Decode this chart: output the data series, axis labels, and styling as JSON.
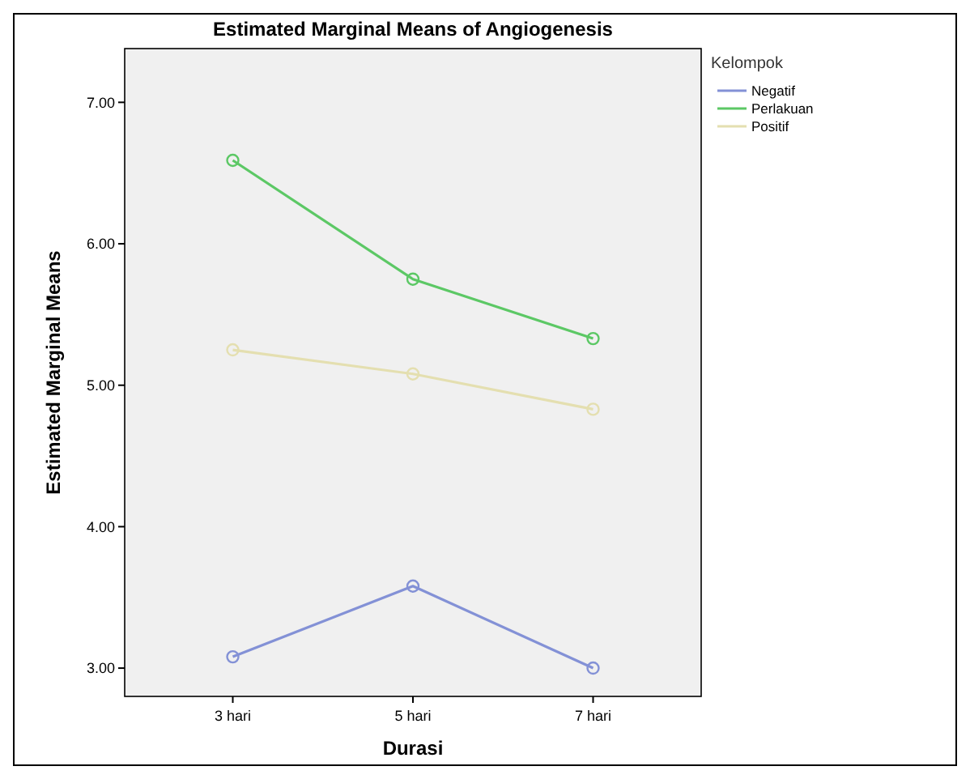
{
  "chart_data": {
    "type": "line",
    "title": "Estimated Marginal Means of Angiogenesis",
    "xlabel": "Durasi",
    "ylabel": "Estimated Marginal Means",
    "legend_title": "Kelompok",
    "categories": [
      "3 hari",
      "5 hari",
      "7 hari"
    ],
    "series": [
      {
        "name": "Negatif",
        "color": "#8391d6",
        "values": [
          3.08,
          3.58,
          3.0
        ]
      },
      {
        "name": "Perlakuan",
        "color": "#5cc865",
        "values": [
          6.59,
          5.75,
          5.33
        ]
      },
      {
        "name": "Positif",
        "color": "#e4dfb0",
        "values": [
          5.25,
          5.08,
          4.83
        ]
      }
    ],
    "ylim": [
      2.8,
      7.38
    ],
    "yticks": [
      {
        "value": 3,
        "label": "3.00"
      },
      {
        "value": 4,
        "label": "4.00"
      },
      {
        "value": 5,
        "label": "5.00"
      },
      {
        "value": 6,
        "label": "6.00"
      },
      {
        "value": 7,
        "label": "7.00"
      }
    ],
    "grid": false,
    "legend": "top right",
    "marker": "circle",
    "line_style": "solid"
  }
}
